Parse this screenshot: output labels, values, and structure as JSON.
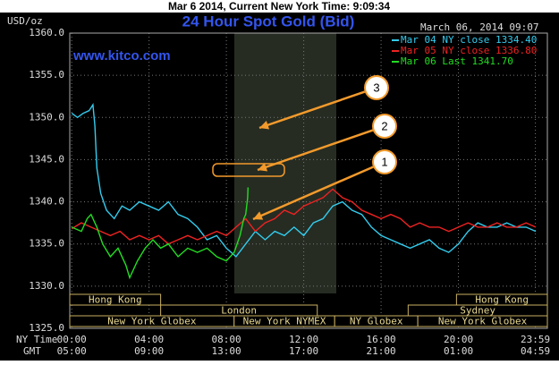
{
  "chart_data": {
    "type": "line",
    "header": "Mar 6 2014, Current New York Time: 9:09:34",
    "title": "24 Hour Spot Gold (Bid)",
    "timestamp": "March 06, 2014 09:07",
    "ylabel": "USD/oz",
    "watermark": "www.kitco.com",
    "xlabel": "NY Time",
    "x2label": "GMT",
    "xlim": [
      -0.1,
      24.6
    ],
    "ylim": [
      1325,
      1360
    ],
    "yticks": [
      {
        "value": 1325,
        "label": "1325.0"
      },
      {
        "value": 1330,
        "label": "1330.0"
      },
      {
        "value": 1335,
        "label": "1335.0"
      },
      {
        "value": 1340,
        "label": "1340.0"
      },
      {
        "value": 1345,
        "label": "1345.0"
      },
      {
        "value": 1350,
        "label": "1350.0"
      },
      {
        "value": 1355,
        "label": "1355.0"
      },
      {
        "value": 1360,
        "label": "1360.0"
      }
    ],
    "xticks": [
      {
        "value": 0,
        "label": "00:00"
      },
      {
        "value": 4,
        "label": "04:00"
      },
      {
        "value": 8,
        "label": "08:00"
      },
      {
        "value": 12,
        "label": "12:00"
      },
      {
        "value": 16,
        "label": "16:00"
      },
      {
        "value": 20,
        "label": "20:00"
      },
      {
        "value": 23.98,
        "label": "23:59"
      }
    ],
    "x2ticks": [
      {
        "value": 0,
        "label": "05:00"
      },
      {
        "value": 4,
        "label": "09:00"
      },
      {
        "value": 8,
        "label": "13:00"
      },
      {
        "value": 12,
        "label": "17:00"
      },
      {
        "value": 16,
        "label": "21:00"
      },
      {
        "value": 20,
        "label": "01:00"
      },
      {
        "value": 23.98,
        "label": "04:59"
      }
    ],
    "grid": true,
    "sessions": [
      "Hong Kong",
      "London",
      "New York Globex",
      "New York NYMEX",
      "NY Globex",
      "Hong Kong",
      "Sydney",
      "New York Globex"
    ],
    "annotations": [
      "1",
      "2",
      "3"
    ],
    "series": [
      {
        "name": "Mar 04 NY close 1334.40",
        "color": "#33ccee",
        "x": [
          0,
          0.3,
          0.6,
          0.9,
          1.1,
          1.2,
          1.3,
          1.5,
          1.8,
          2.2,
          2.6,
          3,
          3.5,
          4,
          4.5,
          5,
          5.5,
          6,
          6.5,
          7,
          7.5,
          8,
          8.5,
          9,
          9.5,
          10,
          10.5,
          11,
          11.5,
          12,
          12.5,
          13,
          13.5,
          14,
          14.5,
          15,
          15.5,
          16,
          16.5,
          17,
          17.5,
          18,
          18.5,
          19,
          19.5,
          20,
          20.5,
          21,
          21.5,
          22,
          22.5,
          23,
          23.5,
          24
        ],
        "values": [
          1350.5,
          1350,
          1350.5,
          1350.8,
          1351.5,
          1349,
          1344,
          1341,
          1339,
          1338,
          1339.5,
          1339,
          1340,
          1339.5,
          1339,
          1340,
          1338.5,
          1338,
          1337,
          1335.5,
          1336,
          1334.5,
          1333.5,
          1335,
          1336.5,
          1335.5,
          1336.5,
          1336,
          1337,
          1336,
          1337.5,
          1338,
          1339.5,
          1340,
          1339,
          1338.5,
          1337,
          1336,
          1335.5,
          1335,
          1334.5,
          1335,
          1335.5,
          1334.5,
          1334,
          1335,
          1336.5,
          1337.5,
          1337,
          1337,
          1337.5,
          1337,
          1337,
          1336.5
        ]
      },
      {
        "name": "Mar 05 NY close 1336.80",
        "color": "#ee2222",
        "x": [
          0,
          0.5,
          1,
          1.5,
          2,
          2.5,
          3,
          3.5,
          4,
          4.5,
          5,
          5.5,
          6,
          6.5,
          7,
          7.5,
          8,
          8.5,
          9,
          9.5,
          10,
          10.5,
          11,
          11.5,
          12,
          12.5,
          13,
          13.5,
          14,
          14.5,
          15,
          15.5,
          16,
          16.5,
          17,
          17.5,
          18,
          18.5,
          19,
          19.5,
          20,
          20.5,
          21,
          21.5,
          22,
          22.5,
          23,
          23.5,
          24
        ],
        "values": [
          1336.8,
          1337.5,
          1337,
          1336.5,
          1336,
          1336.5,
          1335.5,
          1336,
          1335.5,
          1336,
          1335,
          1335.5,
          1336,
          1335.5,
          1336,
          1336.5,
          1336,
          1337,
          1338,
          1336.5,
          1337.5,
          1338,
          1339,
          1338.5,
          1339.5,
          1340,
          1340.5,
          1341.5,
          1340.5,
          1340,
          1339,
          1338.5,
          1338,
          1338.5,
          1338,
          1337,
          1337.5,
          1337,
          1337,
          1336.5,
          1337,
          1337.5,
          1337,
          1337,
          1337.5,
          1337,
          1337,
          1337.5,
          1337
        ]
      },
      {
        "name": "Mar 06 Last 1341.70",
        "color": "#22dd22",
        "x": [
          0,
          0.5,
          0.8,
          1,
          1.3,
          1.6,
          2,
          2.4,
          2.8,
          3,
          3.4,
          3.8,
          4.2,
          4.6,
          5,
          5.5,
          6,
          6.5,
          7,
          7.5,
          8,
          8.4,
          8.7,
          8.9,
          9,
          9.05,
          9.1,
          9.12
        ],
        "values": [
          1337,
          1336.5,
          1338,
          1338.5,
          1337,
          1335,
          1333.5,
          1334.5,
          1332.5,
          1331,
          1333,
          1334.5,
          1335.5,
          1334.5,
          1335,
          1333.5,
          1334.5,
          1334,
          1334.5,
          1333.5,
          1333,
          1334,
          1336,
          1338,
          1338.5,
          1339.5,
          1340.5,
          1341.7
        ]
      }
    ]
  }
}
